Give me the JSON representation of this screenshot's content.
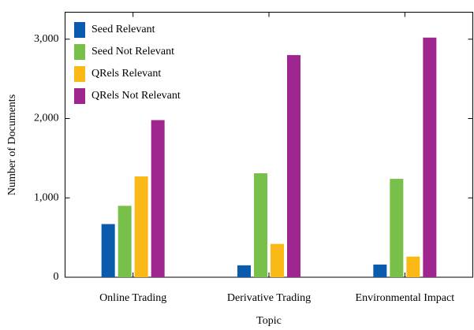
{
  "chart_data": {
    "type": "bar",
    "xlabel": "Topic",
    "ylabel": "Number of Documents",
    "categories": [
      "Online Trading",
      "Derivative Trading",
      "Environmental Impact"
    ],
    "series": [
      {
        "name": "Seed Relevant",
        "color": "#0a5aad",
        "values": [
          670,
          150,
          160
        ]
      },
      {
        "name": "Seed Not Relevant",
        "color": "#78c04a",
        "values": [
          900,
          1310,
          1240
        ]
      },
      {
        "name": "QRels Relevant",
        "color": "#fbb917",
        "values": [
          1270,
          420,
          260
        ]
      },
      {
        "name": "QRels Not Relevant",
        "color": "#a0268f",
        "values": [
          1980,
          2800,
          3020
        ]
      }
    ],
    "ylim": [
      0,
      3340
    ],
    "yticks": [
      0,
      {
        "value": 1000,
        "label": "1,000"
      },
      {
        "value": 2000,
        "label": "2,000"
      },
      {
        "value": 3000,
        "label": "3,000"
      }
    ],
    "legend": "upper left"
  }
}
